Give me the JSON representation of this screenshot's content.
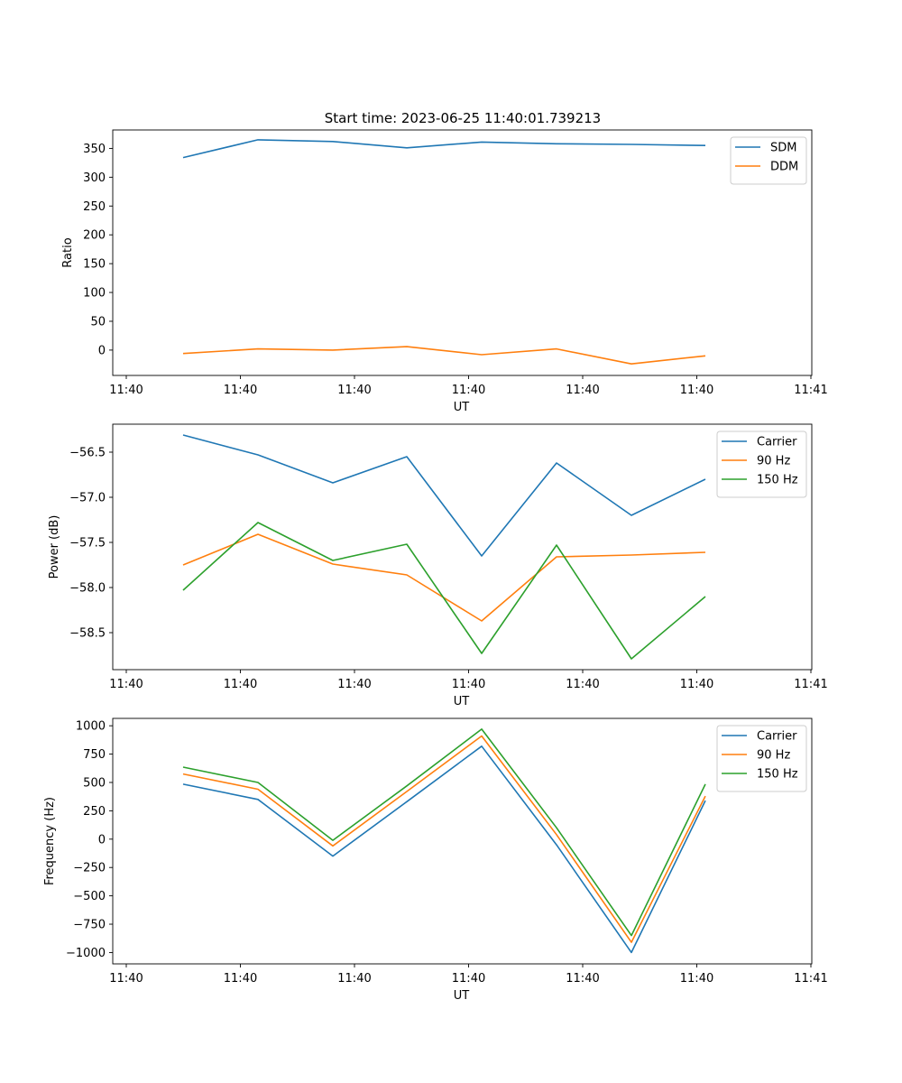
{
  "title": "Start time: 2023-06-25 11:40:01.739213",
  "colors": {
    "blue": "#1f77b4",
    "orange": "#ff7f0e",
    "green": "#2ca02c"
  },
  "chart_data": [
    {
      "type": "line",
      "xlabel": "UT",
      "ylabel": "Ratio",
      "x_tick_labels": [
        "11:40",
        "11:40",
        "11:40",
        "11:40",
        "11:40",
        "11:40",
        "11:40",
        "11:41"
      ],
      "y_ticks": [
        0,
        50,
        100,
        150,
        200,
        250,
        300,
        350
      ],
      "y_tick_labels": [
        "0",
        "50",
        "100",
        "150",
        "200",
        "250",
        "300",
        "350"
      ],
      "ylim": [
        -44,
        382
      ],
      "grid": false,
      "legend_position": "top-right",
      "series": [
        {
          "name": "SDM",
          "color": "#1f77b4",
          "values": [
            334,
            365,
            362,
            351,
            361,
            358,
            357,
            355
          ]
        },
        {
          "name": "DDM",
          "color": "#ff7f0e",
          "values": [
            -6,
            2,
            0,
            6,
            -8,
            2,
            -24,
            -10
          ]
        }
      ]
    },
    {
      "type": "line",
      "xlabel": "UT",
      "ylabel": "Power (dB)",
      "x_tick_labels": [
        "11:40",
        "11:40",
        "11:40",
        "11:40",
        "11:40",
        "11:40",
        "11:40",
        "11:41"
      ],
      "y_ticks": [
        -58.5,
        -58.0,
        -57.5,
        -57.0,
        -56.5
      ],
      "y_tick_labels": [
        "−58.5",
        "−58.0",
        "−57.5",
        "−57.0",
        "−56.5"
      ],
      "ylim": [
        -58.91,
        -56.19
      ],
      "grid": false,
      "legend_position": "top-right",
      "series": [
        {
          "name": "Carrier",
          "color": "#1f77b4",
          "values": [
            -56.31,
            -56.53,
            -56.84,
            -56.55,
            -57.65,
            -56.62,
            -57.2,
            -56.8
          ]
        },
        {
          "name": "90 Hz",
          "color": "#ff7f0e",
          "values": [
            -57.75,
            -57.41,
            -57.74,
            -57.86,
            -58.37,
            -57.66,
            -57.64,
            -57.61
          ]
        },
        {
          "name": "150 Hz",
          "color": "#2ca02c",
          "values": [
            -58.03,
            -57.28,
            -57.7,
            -57.52,
            -58.73,
            -57.53,
            -58.79,
            -58.1
          ]
        }
      ]
    },
    {
      "type": "line",
      "xlabel": "UT",
      "ylabel": "Frequency (Hz)",
      "x_tick_labels": [
        "11:40",
        "11:40",
        "11:40",
        "11:40",
        "11:40",
        "11:40",
        "11:40",
        "11:41"
      ],
      "y_ticks": [
        -1000,
        -750,
        -500,
        -250,
        0,
        250,
        500,
        750,
        1000
      ],
      "y_tick_labels": [
        "−1000",
        "−750",
        "−500",
        "−250",
        "0",
        "250",
        "500",
        "750",
        "1000"
      ],
      "ylim": [
        -1100,
        1065
      ],
      "grid": false,
      "legend_position": "top-right",
      "series": [
        {
          "name": "Carrier",
          "color": "#1f77b4",
          "values": [
            485,
            350,
            -150,
            330,
            820,
            -50,
            -1000,
            340
          ]
        },
        {
          "name": "90 Hz",
          "color": "#ff7f0e",
          "values": [
            575,
            440,
            -60,
            420,
            910,
            40,
            -910,
            380
          ]
        },
        {
          "name": "150 Hz",
          "color": "#2ca02c",
          "values": [
            635,
            500,
            -10,
            470,
            970,
            100,
            -850,
            485
          ]
        }
      ]
    }
  ]
}
